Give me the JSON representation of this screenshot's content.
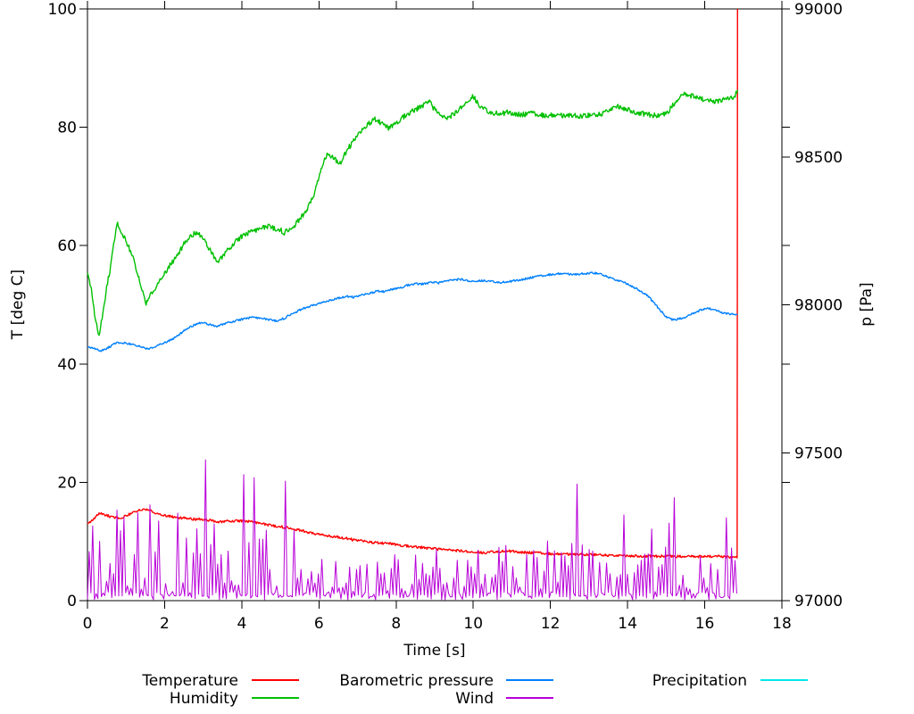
{
  "chart_data": {
    "type": "line",
    "title": "",
    "xlabel": "Time [s]",
    "ylabel": "T [deg C]",
    "y2label": "p [Pa]",
    "xlim": [
      0,
      18
    ],
    "ylim": [
      0,
      100
    ],
    "y2lim": [
      97000,
      99000
    ],
    "xticks": [
      0,
      2,
      4,
      6,
      8,
      10,
      12,
      14,
      16,
      18
    ],
    "yticks": [
      0,
      20,
      40,
      60,
      80,
      100
    ],
    "y2ticks": [
      97000,
      97500,
      98000,
      98500,
      99000
    ],
    "grid": false,
    "legend_position": "bottom",
    "axis_color": "#000000",
    "background_color": "#ffffff",
    "series": [
      {
        "name": "Temperature",
        "color": "#ff0000",
        "axis": "y",
        "noise": 0.22,
        "points": [
          [
            0,
            13.0
          ],
          [
            0.15,
            13.6
          ],
          [
            0.3,
            14.8
          ],
          [
            0.5,
            14.4
          ],
          [
            0.7,
            14.0
          ],
          [
            0.9,
            14.1
          ],
          [
            1.1,
            14.6
          ],
          [
            1.3,
            15.2
          ],
          [
            1.5,
            15.5
          ],
          [
            1.7,
            15.0
          ],
          [
            1.9,
            14.5
          ],
          [
            2.1,
            14.3
          ],
          [
            2.4,
            14.0
          ],
          [
            2.7,
            13.8
          ],
          [
            3.0,
            13.7
          ],
          [
            3.2,
            13.6
          ],
          [
            3.4,
            13.3
          ],
          [
            3.7,
            13.5
          ],
          [
            4.0,
            13.5
          ],
          [
            4.3,
            13.3
          ],
          [
            4.6,
            12.9
          ],
          [
            4.9,
            12.6
          ],
          [
            5.2,
            12.3
          ],
          [
            5.5,
            11.9
          ],
          [
            5.8,
            11.4
          ],
          [
            6.1,
            11.1
          ],
          [
            6.4,
            10.8
          ],
          [
            6.7,
            10.5
          ],
          [
            7.0,
            10.2
          ],
          [
            7.3,
            9.9
          ],
          [
            7.6,
            9.7
          ],
          [
            7.9,
            9.6
          ],
          [
            8.2,
            9.3
          ],
          [
            8.5,
            9.1
          ],
          [
            8.8,
            8.9
          ],
          [
            9.1,
            8.7
          ],
          [
            9.4,
            8.5
          ],
          [
            9.7,
            8.4
          ],
          [
            10.0,
            8.2
          ],
          [
            10.3,
            8.1
          ],
          [
            10.6,
            8.3
          ],
          [
            10.9,
            8.4
          ],
          [
            11.2,
            8.2
          ],
          [
            11.5,
            8.1
          ],
          [
            11.8,
            8.0
          ],
          [
            12.1,
            7.9
          ],
          [
            12.4,
            7.9
          ],
          [
            12.7,
            7.8
          ],
          [
            13.0,
            7.8
          ],
          [
            13.4,
            7.7
          ],
          [
            13.8,
            7.6
          ],
          [
            14.2,
            7.6
          ],
          [
            14.6,
            7.5
          ],
          [
            15.0,
            7.5
          ],
          [
            15.4,
            7.5
          ],
          [
            15.8,
            7.4
          ],
          [
            16.1,
            7.5
          ],
          [
            16.4,
            7.5
          ],
          [
            16.7,
            7.4
          ],
          [
            16.84,
            7.4
          ],
          [
            16.85,
            100
          ]
        ]
      },
      {
        "name": "Humidity",
        "color": "#00c000",
        "axis": "y",
        "noise": 0.45,
        "points": [
          [
            0,
            55.5
          ],
          [
            0.05,
            54
          ],
          [
            0.1,
            52.5
          ],
          [
            0.15,
            50
          ],
          [
            0.2,
            47.5
          ],
          [
            0.3,
            44.8
          ],
          [
            0.4,
            48.5
          ],
          [
            0.5,
            53
          ],
          [
            0.6,
            56.5
          ],
          [
            0.7,
            61
          ],
          [
            0.78,
            63.8
          ],
          [
            0.9,
            62.2
          ],
          [
            1.05,
            60
          ],
          [
            1.2,
            57.5
          ],
          [
            1.35,
            54
          ],
          [
            1.52,
            50.3
          ],
          [
            1.7,
            52.3
          ],
          [
            1.9,
            54.3
          ],
          [
            2.1,
            56.3
          ],
          [
            2.3,
            58.2
          ],
          [
            2.5,
            60.2
          ],
          [
            2.7,
            61.7
          ],
          [
            2.8,
            62.2
          ],
          [
            3.0,
            61.3
          ],
          [
            3.2,
            59.0
          ],
          [
            3.38,
            57.3
          ],
          [
            3.55,
            58.6
          ],
          [
            3.8,
            60.5
          ],
          [
            4.0,
            61.6
          ],
          [
            4.25,
            62.4
          ],
          [
            4.55,
            63.0
          ],
          [
            4.7,
            63.3
          ],
          [
            5.0,
            62.6
          ],
          [
            5.1,
            62.2
          ],
          [
            5.3,
            63.0
          ],
          [
            5.55,
            64.8
          ],
          [
            5.7,
            66.2
          ],
          [
            5.85,
            68.2
          ],
          [
            6.0,
            71.5
          ],
          [
            6.15,
            74.8
          ],
          [
            6.25,
            75.6
          ],
          [
            6.45,
            74.3
          ],
          [
            6.55,
            73.9
          ],
          [
            6.75,
            76.3
          ],
          [
            6.9,
            77.8
          ],
          [
            7.1,
            79.3
          ],
          [
            7.3,
            80.7
          ],
          [
            7.45,
            81.3
          ],
          [
            7.7,
            80.3
          ],
          [
            7.8,
            79.8
          ],
          [
            8.0,
            80.8
          ],
          [
            8.2,
            81.8
          ],
          [
            8.45,
            82.9
          ],
          [
            8.6,
            83.3
          ],
          [
            8.85,
            84.4
          ],
          [
            9.0,
            83.0
          ],
          [
            9.15,
            81.9
          ],
          [
            9.3,
            81.4
          ],
          [
            9.5,
            82.2
          ],
          [
            9.75,
            83.8
          ],
          [
            10.0,
            85.2
          ],
          [
            10.2,
            83.4
          ],
          [
            10.4,
            82.6
          ],
          [
            10.7,
            82.3
          ],
          [
            10.9,
            82.5
          ],
          [
            11.2,
            82.1
          ],
          [
            11.5,
            82.3
          ],
          [
            11.8,
            82.0
          ],
          [
            12.1,
            82.1
          ],
          [
            12.4,
            82.0
          ],
          [
            12.7,
            81.9
          ],
          [
            13.0,
            82.0
          ],
          [
            13.3,
            82.2
          ],
          [
            13.5,
            82.9
          ],
          [
            13.75,
            83.5
          ],
          [
            14.0,
            83.1
          ],
          [
            14.3,
            82.4
          ],
          [
            14.6,
            82.1
          ],
          [
            14.85,
            81.8
          ],
          [
            15.05,
            82.7
          ],
          [
            15.25,
            84.4
          ],
          [
            15.45,
            85.5
          ],
          [
            15.7,
            85.2
          ],
          [
            15.95,
            84.8
          ],
          [
            16.15,
            84.4
          ],
          [
            16.35,
            84.5
          ],
          [
            16.6,
            85.0
          ],
          [
            16.75,
            85.0
          ],
          [
            16.85,
            86.3
          ]
        ]
      },
      {
        "name": "Barometric pressure",
        "color": "#0080ff",
        "axis": "y2",
        "noise": 3.5,
        "points": [
          [
            0,
            97858
          ],
          [
            0.2,
            97850
          ],
          [
            0.35,
            97844
          ],
          [
            0.5,
            97852
          ],
          [
            0.7,
            97868
          ],
          [
            0.85,
            97874
          ],
          [
            1.0,
            97870
          ],
          [
            1.2,
            97864
          ],
          [
            1.4,
            97858
          ],
          [
            1.6,
            97850
          ],
          [
            1.8,
            97862
          ],
          [
            2.0,
            97872
          ],
          [
            2.2,
            97884
          ],
          [
            2.4,
            97902
          ],
          [
            2.6,
            97920
          ],
          [
            2.8,
            97934
          ],
          [
            3.0,
            97940
          ],
          [
            3.2,
            97932
          ],
          [
            3.35,
            97928
          ],
          [
            3.5,
            97934
          ],
          [
            3.7,
            97942
          ],
          [
            3.9,
            97948
          ],
          [
            4.1,
            97954
          ],
          [
            4.3,
            97958
          ],
          [
            4.5,
            97954
          ],
          [
            4.7,
            97950
          ],
          [
            4.9,
            97946
          ],
          [
            5.1,
            97954
          ],
          [
            5.3,
            97970
          ],
          [
            5.5,
            97982
          ],
          [
            5.7,
            97992
          ],
          [
            5.9,
            98000
          ],
          [
            6.1,
            98008
          ],
          [
            6.3,
            98016
          ],
          [
            6.5,
            98022
          ],
          [
            6.7,
            98028
          ],
          [
            6.9,
            98026
          ],
          [
            7.1,
            98032
          ],
          [
            7.3,
            98038
          ],
          [
            7.5,
            98046
          ],
          [
            7.7,
            98044
          ],
          [
            7.9,
            98052
          ],
          [
            8.1,
            98058
          ],
          [
            8.3,
            98066
          ],
          [
            8.5,
            98072
          ],
          [
            8.7,
            98070
          ],
          [
            8.9,
            98076
          ],
          [
            9.1,
            98074
          ],
          [
            9.3,
            98080
          ],
          [
            9.5,
            98084
          ],
          [
            9.7,
            98086
          ],
          [
            9.9,
            98080
          ],
          [
            10.1,
            98080
          ],
          [
            10.3,
            98082
          ],
          [
            10.5,
            98078
          ],
          [
            10.7,
            98076
          ],
          [
            10.9,
            98078
          ],
          [
            11.1,
            98082
          ],
          [
            11.3,
            98086
          ],
          [
            11.5,
            98092
          ],
          [
            11.7,
            98096
          ],
          [
            11.9,
            98100
          ],
          [
            12.1,
            98104
          ],
          [
            12.3,
            98106
          ],
          [
            12.5,
            98104
          ],
          [
            12.7,
            98102
          ],
          [
            12.9,
            98106
          ],
          [
            13.1,
            98108
          ],
          [
            13.3,
            98104
          ],
          [
            13.5,
            98094
          ],
          [
            13.7,
            98084
          ],
          [
            13.9,
            98076
          ],
          [
            14.1,
            98064
          ],
          [
            14.3,
            98050
          ],
          [
            14.5,
            98034
          ],
          [
            14.7,
            98004
          ],
          [
            14.9,
            97974
          ],
          [
            15.0,
            97958
          ],
          [
            15.15,
            97950
          ],
          [
            15.3,
            97952
          ],
          [
            15.5,
            97958
          ],
          [
            15.7,
            97970
          ],
          [
            15.9,
            97982
          ],
          [
            16.05,
            97988
          ],
          [
            16.2,
            97986
          ],
          [
            16.35,
            97978
          ],
          [
            16.5,
            97972
          ],
          [
            16.65,
            97970
          ],
          [
            16.85,
            97966
          ]
        ]
      },
      {
        "name": "Wind",
        "color": "#b800d8",
        "axis": "y",
        "style": "spikes",
        "t_range": [
          0,
          16.85
        ],
        "value_floor": 0.15,
        "envelope": [
          [
            0,
            13
          ],
          [
            0.5,
            13.5
          ],
          [
            1.0,
            14.5
          ],
          [
            1.6,
            16
          ],
          [
            2.0,
            12.5
          ],
          [
            2.5,
            13
          ],
          [
            3.0,
            13.5
          ],
          [
            3.5,
            13
          ],
          [
            4.0,
            14
          ],
          [
            4.5,
            13
          ],
          [
            5.0,
            14
          ],
          [
            5.5,
            12.5
          ],
          [
            6.0,
            10.5
          ],
          [
            6.5,
            9
          ],
          [
            7.0,
            8.5
          ],
          [
            7.5,
            8
          ],
          [
            8.0,
            9
          ],
          [
            8.5,
            8.5
          ],
          [
            9.0,
            9.5
          ],
          [
            9.5,
            8.5
          ],
          [
            10.0,
            8.5
          ],
          [
            10.5,
            9
          ],
          [
            11.0,
            9.5
          ],
          [
            11.5,
            10.5
          ],
          [
            12.0,
            12
          ],
          [
            12.3,
            13.5
          ],
          [
            12.6,
            14
          ],
          [
            13.0,
            13
          ],
          [
            13.5,
            12.5
          ],
          [
            14.0,
            13
          ],
          [
            14.5,
            13.5
          ],
          [
            15.0,
            14
          ],
          [
            15.5,
            13
          ],
          [
            16.0,
            12.5
          ],
          [
            16.4,
            13.5
          ],
          [
            16.85,
            13
          ]
        ],
        "spikes": [
          [
            0.75,
            15.3
          ],
          [
            1.62,
            16.2
          ],
          [
            2.35,
            14.8
          ],
          [
            3.08,
            23.8
          ],
          [
            4.05,
            21.3
          ],
          [
            4.3,
            20.8
          ],
          [
            5.12,
            20.2
          ],
          [
            12.68,
            19.7
          ],
          [
            13.9,
            14.5
          ],
          [
            15.2,
            17.4
          ],
          [
            16.55,
            14.0
          ]
        ]
      },
      {
        "name": "Precipitation",
        "color": "#00e8e8",
        "axis": "y",
        "noise": 0,
        "points": []
      }
    ]
  }
}
